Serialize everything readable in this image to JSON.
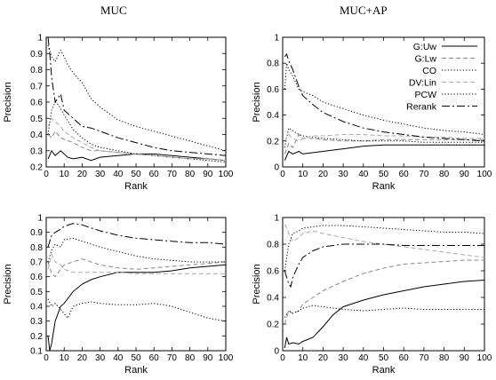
{
  "titles": {
    "left": "MUC",
    "right": "MUC+AP"
  },
  "chart_data": [
    {
      "type": "line",
      "title": "MUC",
      "xlabel": "Rank",
      "ylabel": "Precision",
      "xlim": [
        0,
        100
      ],
      "ylim": [
        0.2,
        1.0
      ],
      "xticks": [
        0,
        10,
        20,
        30,
        40,
        50,
        60,
        70,
        80,
        90,
        100
      ],
      "yticks": [
        0.2,
        0.3,
        0.4,
        0.5,
        0.6,
        0.7,
        0.8,
        0.9,
        1
      ],
      "grid": false,
      "series": [
        {
          "name": "G:Uw",
          "style": "solid",
          "color": "#000000",
          "x": [
            1,
            3,
            5,
            8,
            10,
            12,
            15,
            20,
            25,
            30,
            40,
            50,
            60,
            70,
            80,
            90,
            100
          ],
          "y": [
            0.25,
            0.3,
            0.27,
            0.3,
            0.28,
            0.26,
            0.25,
            0.26,
            0.24,
            0.26,
            0.27,
            0.28,
            0.28,
            0.27,
            0.26,
            0.25,
            0.24
          ]
        },
        {
          "name": "G:Lw",
          "style": "dashed",
          "color": "#888888",
          "x": [
            1,
            3,
            5,
            8,
            10,
            15,
            20,
            25,
            30,
            40,
            50,
            60,
            70,
            80,
            90,
            100
          ],
          "y": [
            0.4,
            0.38,
            0.42,
            0.38,
            0.37,
            0.35,
            0.32,
            0.3,
            0.3,
            0.29,
            0.28,
            0.27,
            0.26,
            0.25,
            0.25,
            0.24
          ]
        },
        {
          "name": "CO",
          "style": "dotted",
          "color": "#000000",
          "x": [
            1,
            3,
            5,
            7,
            10,
            15,
            20,
            25,
            30,
            40,
            50,
            60,
            70,
            80,
            90,
            100
          ],
          "y": [
            0.4,
            0.55,
            0.6,
            0.58,
            0.52,
            0.43,
            0.38,
            0.34,
            0.32,
            0.3,
            0.28,
            0.27,
            0.26,
            0.25,
            0.24,
            0.23
          ]
        },
        {
          "name": "DV:Lin",
          "style": "dashed",
          "color": "#aaaaaa",
          "x": [
            1,
            3,
            5,
            8,
            10,
            15,
            20,
            25,
            30,
            40,
            50,
            60,
            70,
            80,
            90,
            100
          ],
          "y": [
            0.45,
            0.5,
            0.48,
            0.45,
            0.42,
            0.38,
            0.35,
            0.32,
            0.3,
            0.29,
            0.28,
            0.27,
            0.26,
            0.25,
            0.25,
            0.24
          ]
        },
        {
          "name": "PCW",
          "style": "dotted",
          "color": "#000000",
          "x": [
            1,
            3,
            5,
            8,
            10,
            12,
            15,
            20,
            25,
            30,
            40,
            50,
            60,
            70,
            80,
            90,
            100
          ],
          "y": [
            0.95,
            0.88,
            0.85,
            0.92,
            0.88,
            0.83,
            0.78,
            0.72,
            0.62,
            0.57,
            0.49,
            0.45,
            0.42,
            0.39,
            0.36,
            0.33,
            0.3
          ]
        },
        {
          "name": "Rerank",
          "style": "dashdot",
          "color": "#000000",
          "x": [
            1,
            2,
            3,
            5,
            8,
            10,
            15,
            20,
            25,
            30,
            40,
            50,
            60,
            70,
            80,
            90,
            100
          ],
          "y": [
            1.0,
            0.9,
            0.75,
            0.6,
            0.65,
            0.55,
            0.5,
            0.45,
            0.44,
            0.42,
            0.38,
            0.35,
            0.32,
            0.3,
            0.29,
            0.28,
            0.27
          ]
        }
      ]
    },
    {
      "type": "line",
      "title": "MUC+AP",
      "xlabel": "Rank",
      "ylabel": "Precision",
      "xlim": [
        0,
        100
      ],
      "ylim": [
        0,
        1.0
      ],
      "xticks": [
        0,
        10,
        20,
        30,
        40,
        50,
        60,
        70,
        80,
        90,
        100
      ],
      "yticks": [
        0,
        0.2,
        0.4,
        0.6,
        0.8,
        1
      ],
      "grid": false,
      "legend": "top-right",
      "series": [
        {
          "name": "G:Uw",
          "style": "solid",
          "color": "#000000",
          "x": [
            1,
            3,
            5,
            8,
            10,
            15,
            20,
            30,
            40,
            50,
            60,
            70,
            80,
            90,
            100
          ],
          "y": [
            0.05,
            0.12,
            0.1,
            0.12,
            0.1,
            0.11,
            0.12,
            0.14,
            0.16,
            0.17,
            0.17,
            0.17,
            0.17,
            0.17,
            0.17
          ]
        },
        {
          "name": "G:Lw",
          "style": "dashed",
          "color": "#888888",
          "x": [
            1,
            3,
            5,
            8,
            10,
            15,
            20,
            30,
            40,
            50,
            60,
            70,
            80,
            90,
            100
          ],
          "y": [
            0.1,
            0.18,
            0.15,
            0.25,
            0.22,
            0.22,
            0.21,
            0.2,
            0.2,
            0.21,
            0.21,
            0.21,
            0.21,
            0.21,
            0.21
          ]
        },
        {
          "name": "CO",
          "style": "dotted",
          "color": "#000000",
          "x": [
            1,
            3,
            5,
            8,
            10,
            15,
            20,
            30,
            40,
            50,
            60,
            70,
            80,
            90,
            100
          ],
          "y": [
            0.15,
            0.3,
            0.28,
            0.25,
            0.24,
            0.23,
            0.22,
            0.21,
            0.2,
            0.2,
            0.2,
            0.19,
            0.19,
            0.19,
            0.19
          ]
        },
        {
          "name": "DV:Lin",
          "style": "dashed",
          "color": "#aaaaaa",
          "x": [
            1,
            3,
            5,
            8,
            10,
            15,
            20,
            30,
            40,
            50,
            60,
            70,
            80,
            90,
            100
          ],
          "y": [
            0.2,
            0.25,
            0.22,
            0.2,
            0.22,
            0.24,
            0.24,
            0.25,
            0.25,
            0.24,
            0.24,
            0.23,
            0.23,
            0.22,
            0.22
          ]
        },
        {
          "name": "PCW",
          "style": "dotted",
          "color": "#000000",
          "x": [
            1,
            2,
            3,
            5,
            8,
            10,
            15,
            20,
            30,
            40,
            50,
            60,
            70,
            80,
            90,
            100
          ],
          "y": [
            0.6,
            0.8,
            0.75,
            0.7,
            0.6,
            0.58,
            0.55,
            0.5,
            0.45,
            0.4,
            0.36,
            0.33,
            0.3,
            0.28,
            0.27,
            0.25
          ]
        },
        {
          "name": "Rerank",
          "style": "dashdot",
          "color": "#000000",
          "x": [
            1,
            2,
            3,
            5,
            8,
            10,
            15,
            20,
            30,
            40,
            50,
            60,
            70,
            80,
            90,
            100
          ],
          "y": [
            0.85,
            0.87,
            0.82,
            0.75,
            0.62,
            0.55,
            0.48,
            0.42,
            0.35,
            0.3,
            0.27,
            0.25,
            0.23,
            0.22,
            0.21,
            0.2
          ]
        }
      ]
    },
    {
      "type": "line",
      "title": "",
      "xlabel": "Rank",
      "ylabel": "Precision",
      "xlim": [
        0,
        100
      ],
      "ylim": [
        0.1,
        1.0
      ],
      "xticks": [
        0,
        10,
        20,
        30,
        40,
        50,
        60,
        70,
        80,
        90,
        100
      ],
      "yticks": [
        0.1,
        0.2,
        0.3,
        0.4,
        0.5,
        0.6,
        0.7,
        0.8,
        0.9,
        1
      ],
      "grid": false,
      "series": [
        {
          "name": "G:Uw",
          "style": "solid",
          "color": "#000000",
          "x": [
            1,
            2,
            3,
            5,
            8,
            10,
            15,
            20,
            25,
            30,
            40,
            50,
            60,
            70,
            80,
            90,
            100
          ],
          "y": [
            0.2,
            0.1,
            0.15,
            0.3,
            0.4,
            0.42,
            0.5,
            0.55,
            0.58,
            0.6,
            0.63,
            0.63,
            0.63,
            0.64,
            0.66,
            0.67,
            0.68
          ]
        },
        {
          "name": "G:Lw",
          "style": "dashed",
          "color": "#888888",
          "x": [
            1,
            3,
            5,
            8,
            10,
            15,
            20,
            25,
            30,
            40,
            50,
            60,
            70,
            80,
            90,
            100
          ],
          "y": [
            0.7,
            0.62,
            0.6,
            0.65,
            0.68,
            0.7,
            0.72,
            0.7,
            0.68,
            0.66,
            0.65,
            0.66,
            0.67,
            0.68,
            0.69,
            0.7
          ]
        },
        {
          "name": "CO",
          "style": "dotted",
          "color": "#000000",
          "x": [
            1,
            3,
            5,
            8,
            10,
            12,
            15,
            20,
            25,
            30,
            40,
            50,
            60,
            70,
            80,
            90,
            100
          ],
          "y": [
            0.45,
            0.4,
            0.42,
            0.38,
            0.35,
            0.32,
            0.4,
            0.42,
            0.43,
            0.42,
            0.41,
            0.41,
            0.42,
            0.4,
            0.36,
            0.32,
            0.3
          ]
        },
        {
          "name": "DV:Lin",
          "style": "dashed",
          "color": "#aaaaaa",
          "x": [
            1,
            3,
            5,
            8,
            10,
            15,
            20,
            25,
            30,
            40,
            50,
            60,
            70,
            80,
            90,
            100
          ],
          "y": [
            0.65,
            0.75,
            0.7,
            0.68,
            0.65,
            0.63,
            0.63,
            0.63,
            0.63,
            0.63,
            0.62,
            0.62,
            0.62,
            0.62,
            0.62,
            0.62
          ]
        },
        {
          "name": "PCW",
          "style": "dotted",
          "color": "#000000",
          "x": [
            1,
            3,
            5,
            8,
            10,
            15,
            20,
            25,
            30,
            40,
            50,
            60,
            70,
            80,
            90,
            100
          ],
          "y": [
            0.7,
            0.78,
            0.82,
            0.8,
            0.85,
            0.86,
            0.84,
            0.82,
            0.8,
            0.77,
            0.74,
            0.72,
            0.71,
            0.7,
            0.7,
            0.7
          ]
        },
        {
          "name": "Rerank",
          "style": "dashdot",
          "color": "#000000",
          "x": [
            1,
            3,
            5,
            8,
            10,
            15,
            20,
            25,
            30,
            40,
            50,
            60,
            70,
            80,
            90,
            100
          ],
          "y": [
            0.8,
            0.88,
            0.9,
            0.92,
            0.94,
            0.96,
            0.95,
            0.93,
            0.91,
            0.88,
            0.86,
            0.85,
            0.84,
            0.83,
            0.83,
            0.82
          ]
        }
      ]
    },
    {
      "type": "line",
      "title": "",
      "xlabel": "Rank",
      "ylabel": "Precision",
      "xlim": [
        0,
        100
      ],
      "ylim": [
        0,
        1.0
      ],
      "xticks": [
        0,
        10,
        20,
        30,
        40,
        50,
        60,
        70,
        80,
        90,
        100
      ],
      "yticks": [
        0,
        0.2,
        0.4,
        0.6,
        0.8,
        1
      ],
      "grid": false,
      "series": [
        {
          "name": "G:Uw",
          "style": "solid",
          "color": "#000000",
          "x": [
            1,
            2,
            3,
            5,
            8,
            10,
            15,
            20,
            25,
            30,
            40,
            50,
            60,
            70,
            80,
            90,
            100
          ],
          "y": [
            0.02,
            0.1,
            0.05,
            0.06,
            0.05,
            0.07,
            0.1,
            0.18,
            0.27,
            0.33,
            0.38,
            0.42,
            0.45,
            0.48,
            0.5,
            0.52,
            0.53
          ]
        },
        {
          "name": "G:Lw",
          "style": "dashed",
          "color": "#888888",
          "x": [
            1,
            3,
            5,
            8,
            10,
            15,
            20,
            30,
            40,
            50,
            60,
            70,
            80,
            90,
            100
          ],
          "y": [
            0.2,
            0.3,
            0.28,
            0.3,
            0.35,
            0.4,
            0.45,
            0.52,
            0.58,
            0.62,
            0.65,
            0.66,
            0.67,
            0.68,
            0.68
          ]
        },
        {
          "name": "CO",
          "style": "dotted",
          "color": "#000000",
          "x": [
            1,
            3,
            5,
            8,
            10,
            15,
            20,
            30,
            40,
            50,
            60,
            70,
            80,
            90,
            100
          ],
          "y": [
            0.25,
            0.3,
            0.28,
            0.3,
            0.32,
            0.34,
            0.33,
            0.31,
            0.3,
            0.31,
            0.32,
            0.31,
            0.31,
            0.31,
            0.31
          ]
        },
        {
          "name": "DV:Lin",
          "style": "dashed",
          "color": "#aaaaaa",
          "x": [
            1,
            2,
            3,
            5,
            8,
            10,
            15,
            20,
            30,
            40,
            50,
            60,
            70,
            80,
            90,
            100
          ],
          "y": [
            0.95,
            0.92,
            0.88,
            0.82,
            0.85,
            0.88,
            0.9,
            0.88,
            0.85,
            0.82,
            0.8,
            0.78,
            0.76,
            0.74,
            0.72,
            0.7
          ]
        },
        {
          "name": "PCW",
          "style": "dotted",
          "color": "#000000",
          "x": [
            1,
            3,
            5,
            8,
            10,
            15,
            20,
            30,
            40,
            50,
            60,
            70,
            80,
            90,
            100
          ],
          "y": [
            0.6,
            0.8,
            0.88,
            0.9,
            0.92,
            0.93,
            0.94,
            0.94,
            0.93,
            0.92,
            0.91,
            0.9,
            0.89,
            0.89,
            0.88
          ]
        },
        {
          "name": "Rerank",
          "style": "dashdot",
          "color": "#000000",
          "x": [
            1,
            3,
            4,
            5,
            8,
            10,
            15,
            20,
            30,
            40,
            50,
            60,
            70,
            80,
            90,
            100
          ],
          "y": [
            0.6,
            0.5,
            0.48,
            0.55,
            0.65,
            0.7,
            0.75,
            0.78,
            0.8,
            0.8,
            0.8,
            0.79,
            0.79,
            0.79,
            0.79,
            0.79
          ]
        }
      ]
    }
  ]
}
